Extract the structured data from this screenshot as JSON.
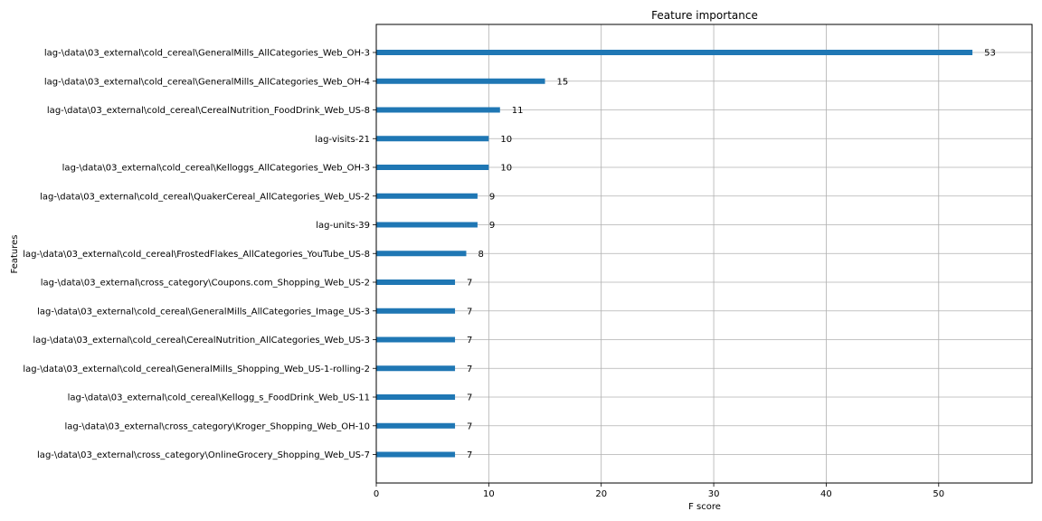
{
  "chart_data": {
    "type": "bar",
    "orientation": "horizontal",
    "title": "Feature importance",
    "xlabel": "F score",
    "ylabel": "Features",
    "xlim": [
      0,
      58.3
    ],
    "xticks": [
      0,
      10,
      20,
      30,
      40,
      50
    ],
    "grid": true,
    "color": "#1f77b4",
    "categories": [
      "lag-\\data\\03_external\\cold_cereal\\GeneralMills_AllCategories_Web_OH-3",
      "lag-\\data\\03_external\\cold_cereal\\GeneralMills_AllCategories_Web_OH-4",
      "lag-\\data\\03_external\\cold_cereal\\CerealNutrition_FoodDrink_Web_US-8",
      "lag-visits-21",
      "lag-\\data\\03_external\\cold_cereal\\Kelloggs_AllCategories_Web_OH-3",
      "lag-\\data\\03_external\\cold_cereal\\QuakerCereal_AllCategories_Web_US-2",
      "lag-units-39",
      "lag-\\data\\03_external\\cold_cereal\\FrostedFlakes_AllCategories_YouTube_US-8",
      "lag-\\data\\03_external\\cross_category\\Coupons.com_Shopping_Web_US-2",
      "lag-\\data\\03_external\\cold_cereal\\GeneralMills_AllCategories_Image_US-3",
      "lag-\\data\\03_external\\cold_cereal\\CerealNutrition_AllCategories_Web_US-3",
      "lag-\\data\\03_external\\cold_cereal\\GeneralMills_Shopping_Web_US-1-rolling-2",
      "lag-\\data\\03_external\\cold_cereal\\Kellogg_s_FoodDrink_Web_US-11",
      "lag-\\data\\03_external\\cross_category\\Kroger_Shopping_Web_OH-10",
      "lag-\\data\\03_external\\cross_category\\OnlineGrocery_Shopping_Web_US-7"
    ],
    "values": [
      53,
      15,
      11,
      10,
      10,
      9,
      9,
      8,
      7,
      7,
      7,
      7,
      7,
      7,
      7
    ]
  }
}
